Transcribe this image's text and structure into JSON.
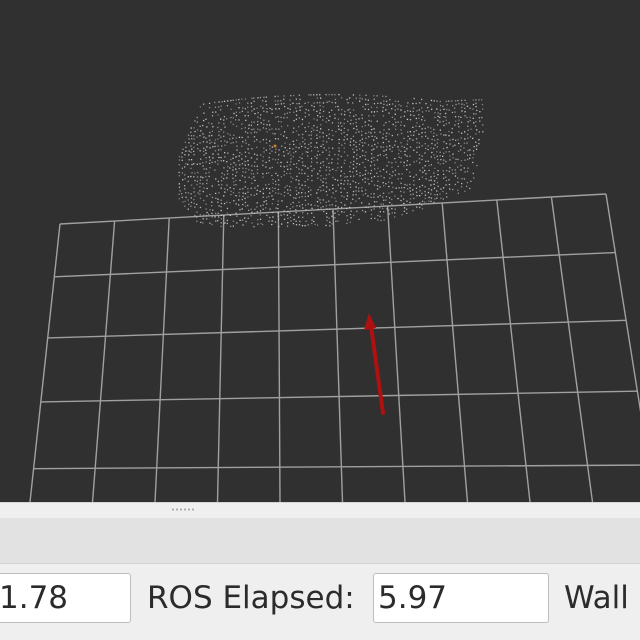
{
  "time_panel": {
    "ros_time_value": "1.78",
    "ros_elapsed_label": "ROS Elapsed:",
    "ros_elapsed_value": "5.97",
    "wall_label": "Wall"
  },
  "viewport": {
    "background_color": "#303030",
    "grid_color": "#a0a0a0",
    "arrow_color": "#b01010",
    "point_color": "#d8d8d8"
  }
}
